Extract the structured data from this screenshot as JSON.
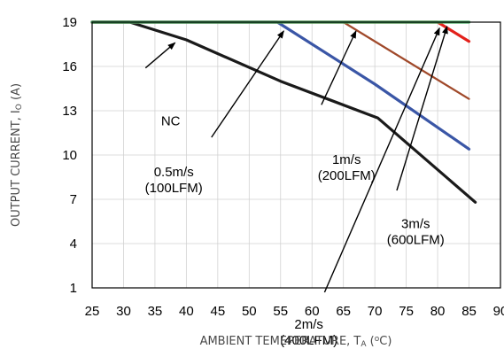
{
  "chart_data": {
    "type": "line",
    "xlabel": {
      "main": "AMBIENT TEMEPERATURE, T",
      "sub": "A",
      "open": " (",
      "sup": "o",
      "close": "C)"
    },
    "ylabel": {
      "main": "OUTPUT CURRENT, I",
      "sub": "O",
      "rest": " (A)"
    },
    "xlim": [
      25,
      90
    ],
    "ylim": [
      1,
      19
    ],
    "x_ticks": [
      25,
      30,
      35,
      40,
      45,
      50,
      55,
      60,
      65,
      70,
      75,
      80,
      85,
      90
    ],
    "y_ticks": [
      1,
      4,
      7,
      10,
      13,
      16,
      19
    ],
    "x_tick_labels": [
      "25",
      "30",
      "35",
      "40",
      "45",
      "50",
      "55",
      "60",
      "65",
      "70",
      "75",
      "80",
      "85",
      "90"
    ],
    "y_tick_labels": [
      "1",
      "4",
      "7",
      "10",
      "13",
      "16",
      "19"
    ],
    "grid": true,
    "series": [
      {
        "color": "#1a1a1a",
        "width": 3.2,
        "points": [
          [
            25,
            19
          ],
          [
            31,
            19
          ],
          [
            40,
            17.8
          ],
          [
            55,
            15.0
          ],
          [
            70.5,
            12.5
          ],
          [
            86,
            6.8
          ]
        ]
      },
      {
        "color": "#3a56a6",
        "width": 3.2,
        "points": [
          [
            25,
            19
          ],
          [
            54.5,
            19
          ],
          [
            70,
            14.8
          ],
          [
            85,
            10.4
          ]
        ]
      },
      {
        "color": "#a0492a",
        "width": 2.2,
        "points": [
          [
            25,
            19
          ],
          [
            65,
            19
          ],
          [
            85,
            13.8
          ]
        ]
      },
      {
        "color": "#e3211b",
        "width": 3.2,
        "points": [
          [
            25,
            19
          ],
          [
            80,
            19
          ],
          [
            85,
            17.7
          ]
        ]
      },
      {
        "color": "#3da35a",
        "width": 3.2,
        "points": [
          [
            25,
            19
          ],
          [
            85,
            19
          ]
        ]
      }
    ],
    "annotations": [
      {
        "lines": [
          "NC"
        ],
        "text_at": [
          37.5,
          12.0
        ],
        "arrow_from": [
          33.5,
          15.9
        ],
        "arrow_to": [
          38.2,
          17.6
        ]
      },
      {
        "lines": [
          "0.5m/s",
          "(100LFM)"
        ],
        "text_at": [
          38.0,
          8.55
        ],
        "arrow_from": [
          44.0,
          11.2
        ],
        "arrow_to": [
          55.5,
          18.4
        ]
      },
      {
        "lines": [
          "1m/s",
          "(200LFM)"
        ],
        "text_at": [
          65.5,
          9.4
        ],
        "arrow_from": [
          61.5,
          13.4
        ],
        "arrow_to": [
          67.0,
          18.4
        ]
      },
      {
        "lines": [
          "3m/s",
          "(600LFM)"
        ],
        "text_at": [
          76.5,
          5.05
        ],
        "arrow_from": [
          73.5,
          7.6
        ],
        "arrow_to": [
          81.5,
          18.7
        ]
      },
      {
        "lines": [
          "2m/s",
          "(400LFM)"
        ],
        "text_at": [
          59.5,
          -1.75
        ],
        "arrow_from": [
          62.0,
          0.7
        ],
        "arrow_to": [
          80.3,
          18.6
        ]
      }
    ]
  }
}
